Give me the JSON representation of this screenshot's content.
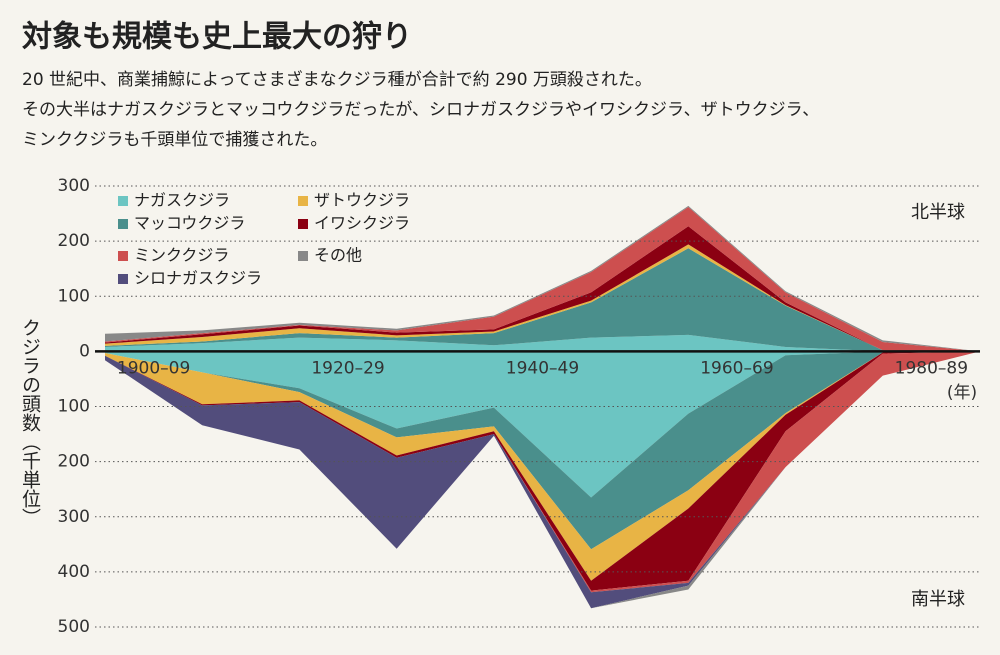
{
  "chart_data": {
    "type": "area",
    "title": "対象も規模も史上最大の狩り",
    "subtitle": [
      "20 世紀中、商業捕鯨によってさまざまなクジラ種が合計で約 290 万頭殺された。",
      "その大半はナガスクジラとマッコウクジラだったが、シロナガスクジラやイワシクジラ、ザトウクジラ、",
      "ミンククジラも千頭単位で捕獲された。"
    ],
    "y_label": "クジラの頭数（千単位）",
    "x_unit": "(年)",
    "annotations": [
      "北半球",
      "南半球"
    ],
    "x": [
      1900,
      1910,
      1920,
      1930,
      1940,
      1950,
      1960,
      1970,
      1980,
      1990
    ],
    "xlim": [
      1900,
      1990
    ],
    "xticks": [
      {
        "value": 1905,
        "label": "1900–09"
      },
      {
        "value": 1925,
        "label": "1920–29"
      },
      {
        "value": 1945,
        "label": "1940–49"
      },
      {
        "value": 1965,
        "label": "1960–69"
      },
      {
        "value": 1985,
        "label": "1980–89"
      }
    ],
    "ylim": [
      -500,
      300
    ],
    "yticks": [
      300,
      200,
      100,
      0,
      {
        "value": -100,
        "label": "100"
      },
      {
        "value": -200,
        "label": "200"
      },
      {
        "value": -300,
        "label": "300"
      },
      {
        "value": -400,
        "label": "400"
      },
      {
        "value": -500,
        "label": "500"
      }
    ],
    "grid": true,
    "series": [
      {
        "name": "ナガスクジラ",
        "color": "#6cc5c2",
        "values": [
          8,
          15,
          25,
          20,
          11,
          25,
          30,
          8,
          0,
          0
        ],
        "values_south": [
          -3,
          -38,
          -67,
          -140,
          -102,
          -265,
          -113,
          -7,
          0,
          0
        ]
      },
      {
        "name": "マッコウクジラ",
        "color": "#4a8f8c",
        "values": [
          2,
          3,
          8,
          5,
          22,
          64,
          157,
          75,
          2,
          0
        ],
        "values_south": [
          0,
          0,
          -7,
          -16,
          -34,
          -94,
          -139,
          -105,
          -2,
          0
        ]
      },
      {
        "name": "ザトウクジラ",
        "color": "#e8b445",
        "values": [
          4,
          8,
          9,
          4,
          3,
          3,
          7,
          1,
          0,
          0
        ],
        "values_south": [
          -5,
          -58,
          -15,
          -33,
          -9,
          -57,
          -33,
          -3,
          0,
          0
        ]
      },
      {
        "name": "イワシクジラ",
        "color": "#8b0012",
        "values": [
          2,
          5,
          5,
          5,
          4,
          15,
          33,
          5,
          0,
          0
        ],
        "values_south": [
          0,
          -2,
          -3,
          -4,
          -5,
          -18,
          -131,
          -30,
          -2,
          0
        ]
      },
      {
        "name": "ミンククジラ",
        "color": "#cd4f4f",
        "values": [
          2,
          2,
          1,
          4,
          23,
          37,
          35,
          18,
          15,
          0
        ],
        "values_south": [
          0,
          0,
          0,
          0,
          0,
          -3,
          -4,
          -65,
          -40,
          0
        ]
      },
      {
        "name": "シロナガスクジラ",
        "color": "#524d7c",
        "values": [
          0,
          0,
          0,
          0,
          0,
          0,
          0,
          0,
          0,
          0
        ],
        "values_south": [
          -8,
          -36,
          -86,
          -165,
          -3,
          -29,
          -5,
          0,
          0,
          0
        ]
      },
      {
        "name": "その他",
        "color": "#888888",
        "values": [
          14,
          5,
          4,
          3,
          2,
          2,
          2,
          2,
          3,
          0
        ],
        "values_south": [
          0,
          0,
          0,
          0,
          0,
          0,
          -7,
          0,
          0,
          0
        ]
      }
    ]
  }
}
